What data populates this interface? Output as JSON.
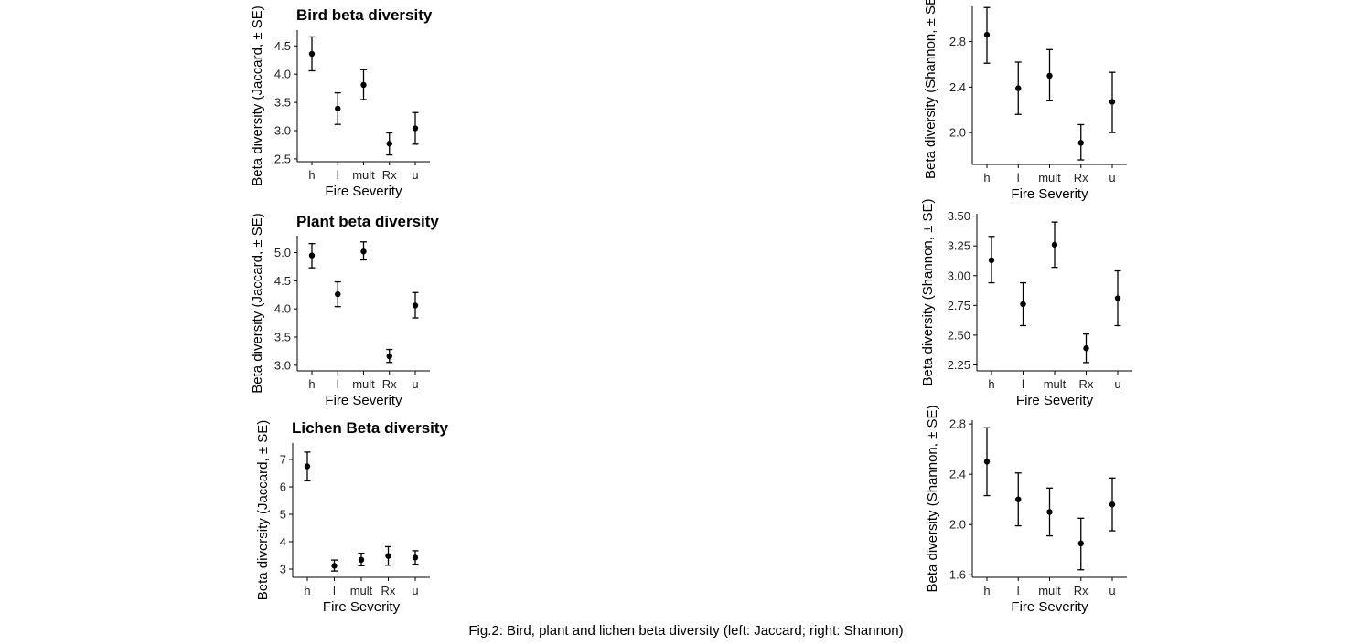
{
  "caption": "Fig.2: Bird, plant and lichen beta diversity (left: Jaccard; right: Shannon)",
  "chart_data": [
    {
      "type": "scatter",
      "title": "Bird beta diversity",
      "xlabel": "Fire Severity",
      "ylabel": "Beta diversity (Jaccard, ± SE)",
      "categories": [
        "h",
        "l",
        "mult",
        "Rx",
        "u"
      ],
      "ylim": [
        2.45,
        4.78
      ],
      "yticks": [
        2.5,
        3.0,
        3.5,
        4.0,
        4.5
      ],
      "ytick_labels": [
        "2.5",
        "3.0",
        "3.5",
        "4.0",
        "4.5"
      ],
      "values": [
        4.36,
        3.39,
        3.81,
        2.77,
        3.04
      ],
      "lower": [
        4.06,
        3.11,
        3.55,
        2.57,
        2.76
      ],
      "upper": [
        4.66,
        3.67,
        4.08,
        2.96,
        3.32
      ],
      "grid": false,
      "legend": "none"
    },
    {
      "type": "scatter",
      "title": "Plant beta diversity",
      "xlabel": "Fire Severity",
      "ylabel": "Beta diversity (Jaccard, ± SE)",
      "categories": [
        "h",
        "l",
        "mult",
        "Rx",
        "u"
      ],
      "ylim": [
        2.9,
        5.3
      ],
      "yticks": [
        3.0,
        3.5,
        4.0,
        4.5,
        5.0
      ],
      "ytick_labels": [
        "3.0",
        "3.5",
        "4.0",
        "4.5",
        "5.0"
      ],
      "values": [
        4.95,
        4.26,
        5.02,
        3.16,
        4.06
      ],
      "lower": [
        4.73,
        4.04,
        4.87,
        3.05,
        3.84
      ],
      "upper": [
        5.16,
        4.48,
        5.19,
        3.28,
        4.29
      ],
      "grid": false,
      "legend": "none"
    },
    {
      "type": "scatter",
      "title": "Lichen Beta diversity",
      "xlabel": "Fire Severity",
      "ylabel": "Beta diversity (Jaccard, ± SE)",
      "categories": [
        "h",
        "l",
        "mult",
        "Rx",
        "u"
      ],
      "ylim": [
        2.7,
        7.6
      ],
      "yticks": [
        3,
        4,
        5,
        6,
        7
      ],
      "ytick_labels": [
        "3",
        "4",
        "5",
        "6",
        "7"
      ],
      "values": [
        6.75,
        3.12,
        3.34,
        3.48,
        3.42
      ],
      "lower": [
        6.22,
        2.93,
        3.12,
        3.14,
        3.18
      ],
      "upper": [
        7.27,
        3.33,
        3.58,
        3.82,
        3.67
      ],
      "grid": false,
      "legend": "none"
    },
    {
      "type": "scatter",
      "title": "",
      "xlabel": "Fire Severity",
      "ylabel": "Beta diversity (Shannon, ± SE)",
      "categories": [
        "h",
        "l",
        "mult",
        "Rx",
        "u"
      ],
      "ylim": [
        1.72,
        3.11
      ],
      "yticks": [
        2.0,
        2.4,
        2.8
      ],
      "ytick_labels": [
        "2.0",
        "2.4",
        "2.8"
      ],
      "values": [
        2.86,
        2.39,
        2.5,
        1.91,
        2.27
      ],
      "lower": [
        2.61,
        2.16,
        2.28,
        1.76,
        2.0
      ],
      "upper": [
        3.1,
        2.62,
        2.73,
        2.07,
        2.53
      ],
      "grid": false,
      "legend": "none"
    },
    {
      "type": "scatter",
      "title": "",
      "xlabel": "Fire Severity",
      "ylabel": "Beta diversity (Shannon, ± SE)",
      "categories": [
        "h",
        "l",
        "mult",
        "Rx",
        "u"
      ],
      "ylim": [
        2.2,
        3.52
      ],
      "yticks": [
        2.25,
        2.5,
        2.75,
        3.0,
        3.25,
        3.5
      ],
      "ytick_labels": [
        "2.25",
        "2.50",
        "2.75",
        "3.00",
        "3.25",
        "3.50"
      ],
      "values": [
        3.13,
        2.76,
        3.26,
        2.39,
        2.81
      ],
      "lower": [
        2.94,
        2.58,
        3.07,
        2.27,
        2.58
      ],
      "upper": [
        3.33,
        2.94,
        3.45,
        2.51,
        3.04
      ],
      "grid": false,
      "legend": "none"
    },
    {
      "type": "scatter",
      "title": "",
      "xlabel": "Fire Severity",
      "ylabel": "Beta diversity (Shannon, ± SE)",
      "categories": [
        "h",
        "l",
        "mult",
        "Rx",
        "u"
      ],
      "ylim": [
        1.58,
        2.83
      ],
      "yticks": [
        1.6,
        2.0,
        2.4,
        2.8
      ],
      "ytick_labels": [
        "1.6",
        "2.0",
        "2.4",
        "2.8"
      ],
      "values": [
        2.5,
        2.2,
        2.1,
        1.85,
        2.16
      ],
      "lower": [
        2.23,
        1.99,
        1.91,
        1.64,
        1.95
      ],
      "upper": [
        2.77,
        2.41,
        2.29,
        2.05,
        2.37
      ],
      "grid": false,
      "legend": "none"
    }
  ]
}
